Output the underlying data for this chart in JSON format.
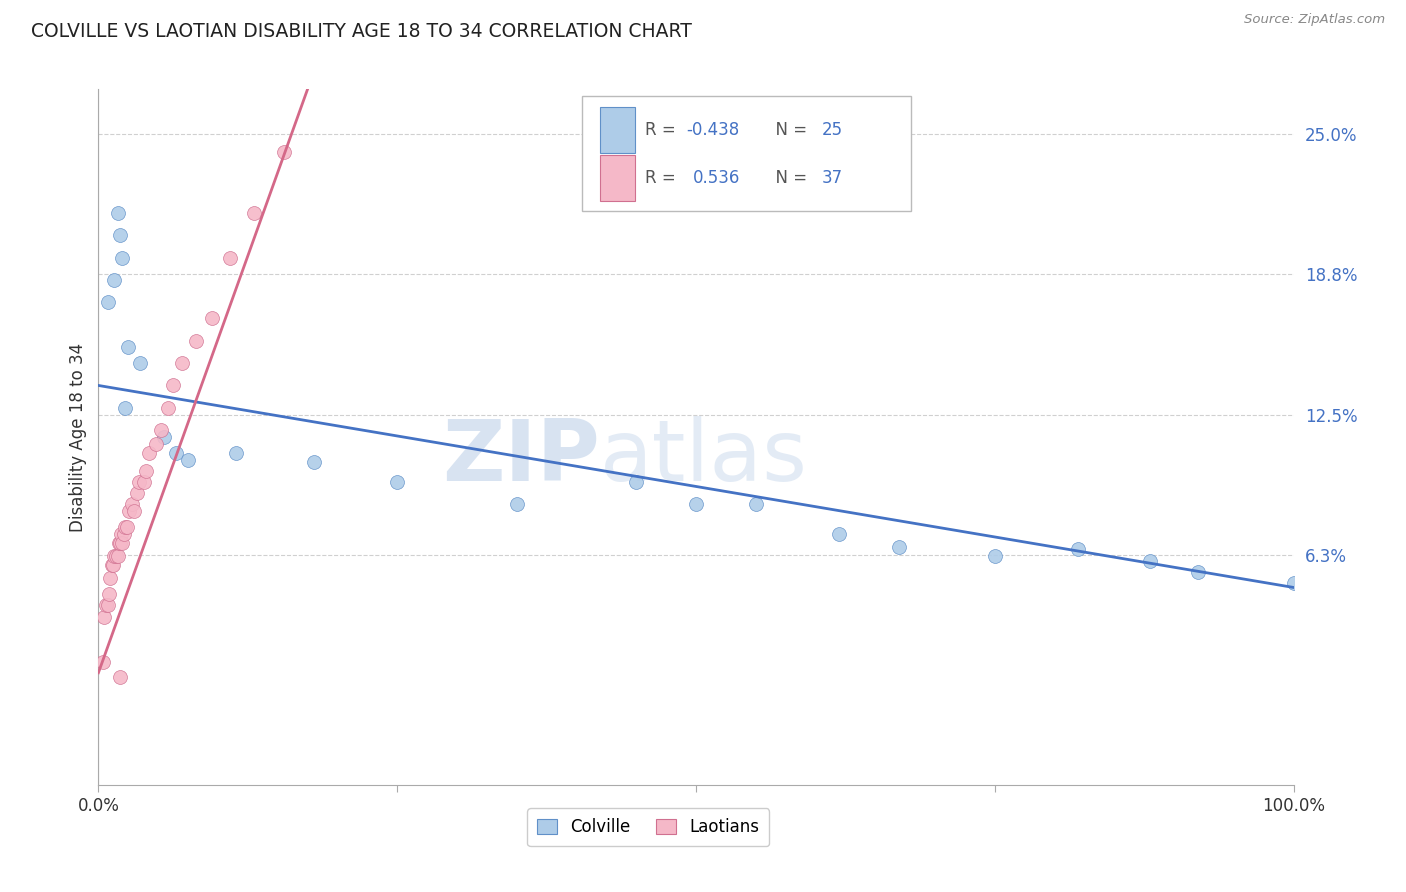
{
  "title": "COLVILLE VS LAOTIAN DISABILITY AGE 18 TO 34 CORRELATION CHART",
  "source": "Source: ZipAtlas.com",
  "ylabel": "Disability Age 18 to 34",
  "colville_color": "#aecce8",
  "laotian_color": "#f5b8c8",
  "colville_edge_color": "#6090c8",
  "laotian_edge_color": "#d07090",
  "colville_line_color": "#4472c4",
  "laotian_line_color": "#d46888",
  "colville_R": -0.438,
  "colville_N": 25,
  "laotian_R": 0.536,
  "laotian_N": 37,
  "y_ticks": [
    0.0625,
    0.125,
    0.1875,
    0.25
  ],
  "y_tick_labels": [
    "6.3%",
    "12.5%",
    "18.8%",
    "25.0%"
  ],
  "x_ticks": [
    0.0,
    1.0
  ],
  "x_tick_labels": [
    "0.0%",
    "100.0%"
  ],
  "x_min": 0.0,
  "x_max": 1.0,
  "y_min": -0.04,
  "y_max": 0.27,
  "colville_x": [
    0.016,
    0.018,
    0.02,
    0.013,
    0.008,
    0.025,
    0.035,
    0.022,
    0.055,
    0.065,
    0.075,
    0.115,
    0.18,
    0.25,
    0.35,
    0.45,
    0.5,
    0.55,
    0.62,
    0.67,
    0.75,
    0.82,
    0.88,
    0.92,
    1.0
  ],
  "colville_y": [
    0.215,
    0.205,
    0.195,
    0.185,
    0.175,
    0.155,
    0.148,
    0.128,
    0.115,
    0.108,
    0.105,
    0.108,
    0.104,
    0.095,
    0.085,
    0.095,
    0.085,
    0.085,
    0.072,
    0.066,
    0.062,
    0.065,
    0.06,
    0.055,
    0.05
  ],
  "laotian_x": [
    0.004,
    0.005,
    0.006,
    0.008,
    0.009,
    0.01,
    0.011,
    0.012,
    0.013,
    0.015,
    0.016,
    0.017,
    0.018,
    0.019,
    0.02,
    0.021,
    0.022,
    0.024,
    0.026,
    0.028,
    0.03,
    0.032,
    0.034,
    0.038,
    0.04,
    0.042,
    0.048,
    0.052,
    0.058,
    0.062,
    0.07,
    0.082,
    0.095,
    0.11,
    0.13,
    0.155,
    0.018
  ],
  "laotian_y": [
    0.015,
    0.035,
    0.04,
    0.04,
    0.045,
    0.052,
    0.058,
    0.058,
    0.062,
    0.062,
    0.062,
    0.068,
    0.068,
    0.072,
    0.068,
    0.072,
    0.075,
    0.075,
    0.082,
    0.085,
    0.082,
    0.09,
    0.095,
    0.095,
    0.1,
    0.108,
    0.112,
    0.118,
    0.128,
    0.138,
    0.148,
    0.158,
    0.168,
    0.195,
    0.215,
    0.242,
    0.008
  ],
  "watermark_zip": "ZIP",
  "watermark_atlas": "atlas",
  "background_color": "#ffffff",
  "grid_color": "#d0d0d0",
  "legend_R_color": "#4472c4"
}
